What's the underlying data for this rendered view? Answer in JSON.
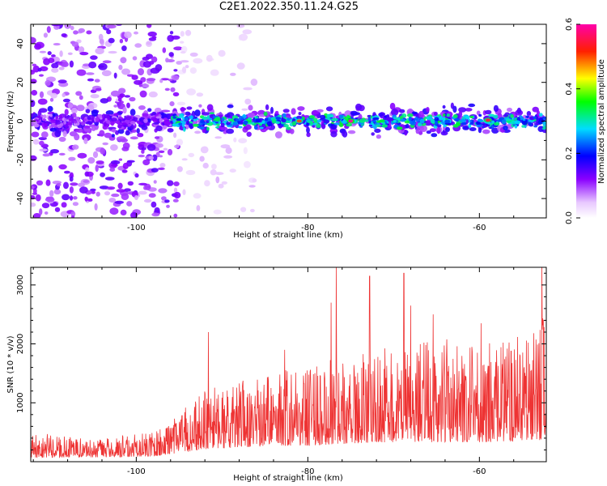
{
  "title": "C2E1.2022.350.11.24.G25",
  "chart_data": [
    {
      "type": "heatmap",
      "xlabel": "Height of straight line (km)",
      "ylabel": "Frequency (Hz)",
      "xlim": [
        -112.3,
        -52.2
      ],
      "ylim": [
        -50,
        50
      ],
      "xticks": [
        -100,
        -80,
        -60
      ],
      "yticks": [
        -40,
        -20,
        0,
        20,
        40
      ],
      "colorbar": {
        "label": "Normalized spectral amplitude",
        "range": [
          0.0,
          0.6
        ],
        "ticks": [
          0.0,
          0.2,
          0.4,
          0.6
        ],
        "colormap": "rainbow (white-violet-blue-cyan-green-yellow-red-magenta)"
      },
      "features": [
        {
          "name": "scatter_noise",
          "x_range": [
            -112.3,
            -95
          ],
          "freq_range": [
            -50,
            50
          ],
          "amplitude": [
            0.05,
            0.15
          ]
        },
        {
          "name": "sparse_noise",
          "x_range": [
            -95,
            -86
          ],
          "freq_range": [
            -50,
            50
          ],
          "amplitude": [
            0.02,
            0.06
          ]
        },
        {
          "name": "signal_band",
          "x_range": [
            -112.3,
            -52.2
          ],
          "freq_center": 0,
          "freq_halfwidth": 6,
          "amplitude_typical": [
            0.15,
            0.35
          ],
          "amplitude_peak": 0.6
        },
        {
          "name": "peak",
          "x": -75,
          "freq": 0,
          "amplitude": 0.6
        },
        {
          "name": "peak",
          "x": -81,
          "freq": 0,
          "amplitude": 0.5
        },
        {
          "name": "peak",
          "x": -59,
          "freq": 0.5,
          "amplitude": 0.55
        }
      ],
      "grid": false
    },
    {
      "type": "line",
      "xlabel": "Height of straight line (km)",
      "ylabel": "SNR (10 * v/v)",
      "xlim": [
        -112.3,
        -52.2
      ],
      "ylim": [
        0,
        3300
      ],
      "xticks": [
        -100,
        -80,
        -60
      ],
      "yticks": [
        1000,
        2000,
        3000
      ],
      "color": "#ee3333",
      "series_envelope": {
        "x": [
          -112.3,
          -105,
          -98,
          -95,
          -92,
          -88,
          -84,
          -80,
          -76,
          -72,
          -68,
          -64,
          -60,
          -56,
          -52.2
        ],
        "baseline": [
          120,
          120,
          150,
          250,
          350,
          400,
          450,
          450,
          500,
          550,
          550,
          550,
          550,
          550,
          600
        ],
        "typical_peak": [
          500,
          400,
          500,
          900,
          1200,
          1400,
          1500,
          1700,
          1800,
          1900,
          2000,
          2100,
          2000,
          2100,
          2500
        ]
      },
      "spikes": [
        {
          "x": -76.7,
          "y": 3300
        },
        {
          "x": -72.8,
          "y": 3150
        },
        {
          "x": -68.8,
          "y": 3200
        },
        {
          "x": -52.7,
          "y": 3300
        },
        {
          "x": -77.3,
          "y": 2700
        },
        {
          "x": -68.0,
          "y": 2650
        },
        {
          "x": -65.4,
          "y": 2500
        },
        {
          "x": -59.8,
          "y": 2350
        },
        {
          "x": -91.6,
          "y": 2200
        },
        {
          "x": -82.7,
          "y": 1900
        }
      ],
      "grid": false
    }
  ]
}
